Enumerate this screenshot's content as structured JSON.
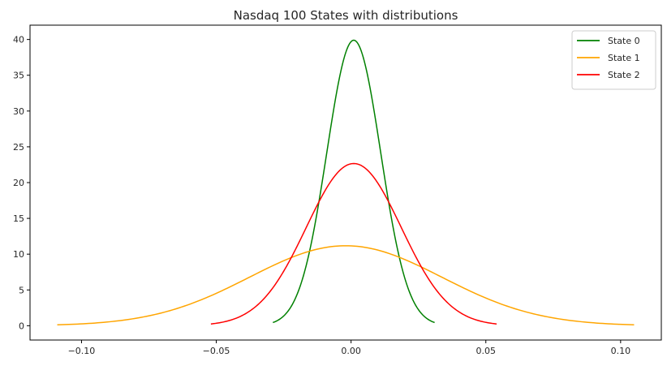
{
  "chart_data": {
    "type": "line",
    "title": "Nasdaq 100 States with distributions",
    "xlabel": "",
    "ylabel": "",
    "xlim": [
      -0.1191,
      0.1151
    ],
    "ylim": [
      -2.0,
      42.0
    ],
    "xticks": [
      -0.1,
      -0.05,
      0.0,
      0.05,
      0.1
    ],
    "xtick_labels": [
      "−0.10",
      "−0.05",
      "0.00",
      "0.05",
      "0.10"
    ],
    "yticks": [
      0,
      5,
      10,
      15,
      20,
      25,
      30,
      35,
      40
    ],
    "ytick_labels": [
      "0",
      "5",
      "10",
      "15",
      "20",
      "25",
      "30",
      "35",
      "40"
    ],
    "grid": false,
    "legend_position": "top-right",
    "series": [
      {
        "name": "State 0",
        "color": "#008000",
        "distribution": "normal",
        "mean": 0.001,
        "std": 0.01,
        "x_range": [
          -0.029,
          0.031
        ]
      },
      {
        "name": "State 1",
        "color": "#ffa500",
        "distribution": "normal",
        "mean": -0.002,
        "std": 0.0357,
        "x_range": [
          -0.109,
          0.105
        ]
      },
      {
        "name": "State 2",
        "color": "#ff0000",
        "distribution": "normal",
        "mean": 0.001,
        "std": 0.0176,
        "x_range": [
          -0.052,
          0.054
        ]
      }
    ]
  }
}
